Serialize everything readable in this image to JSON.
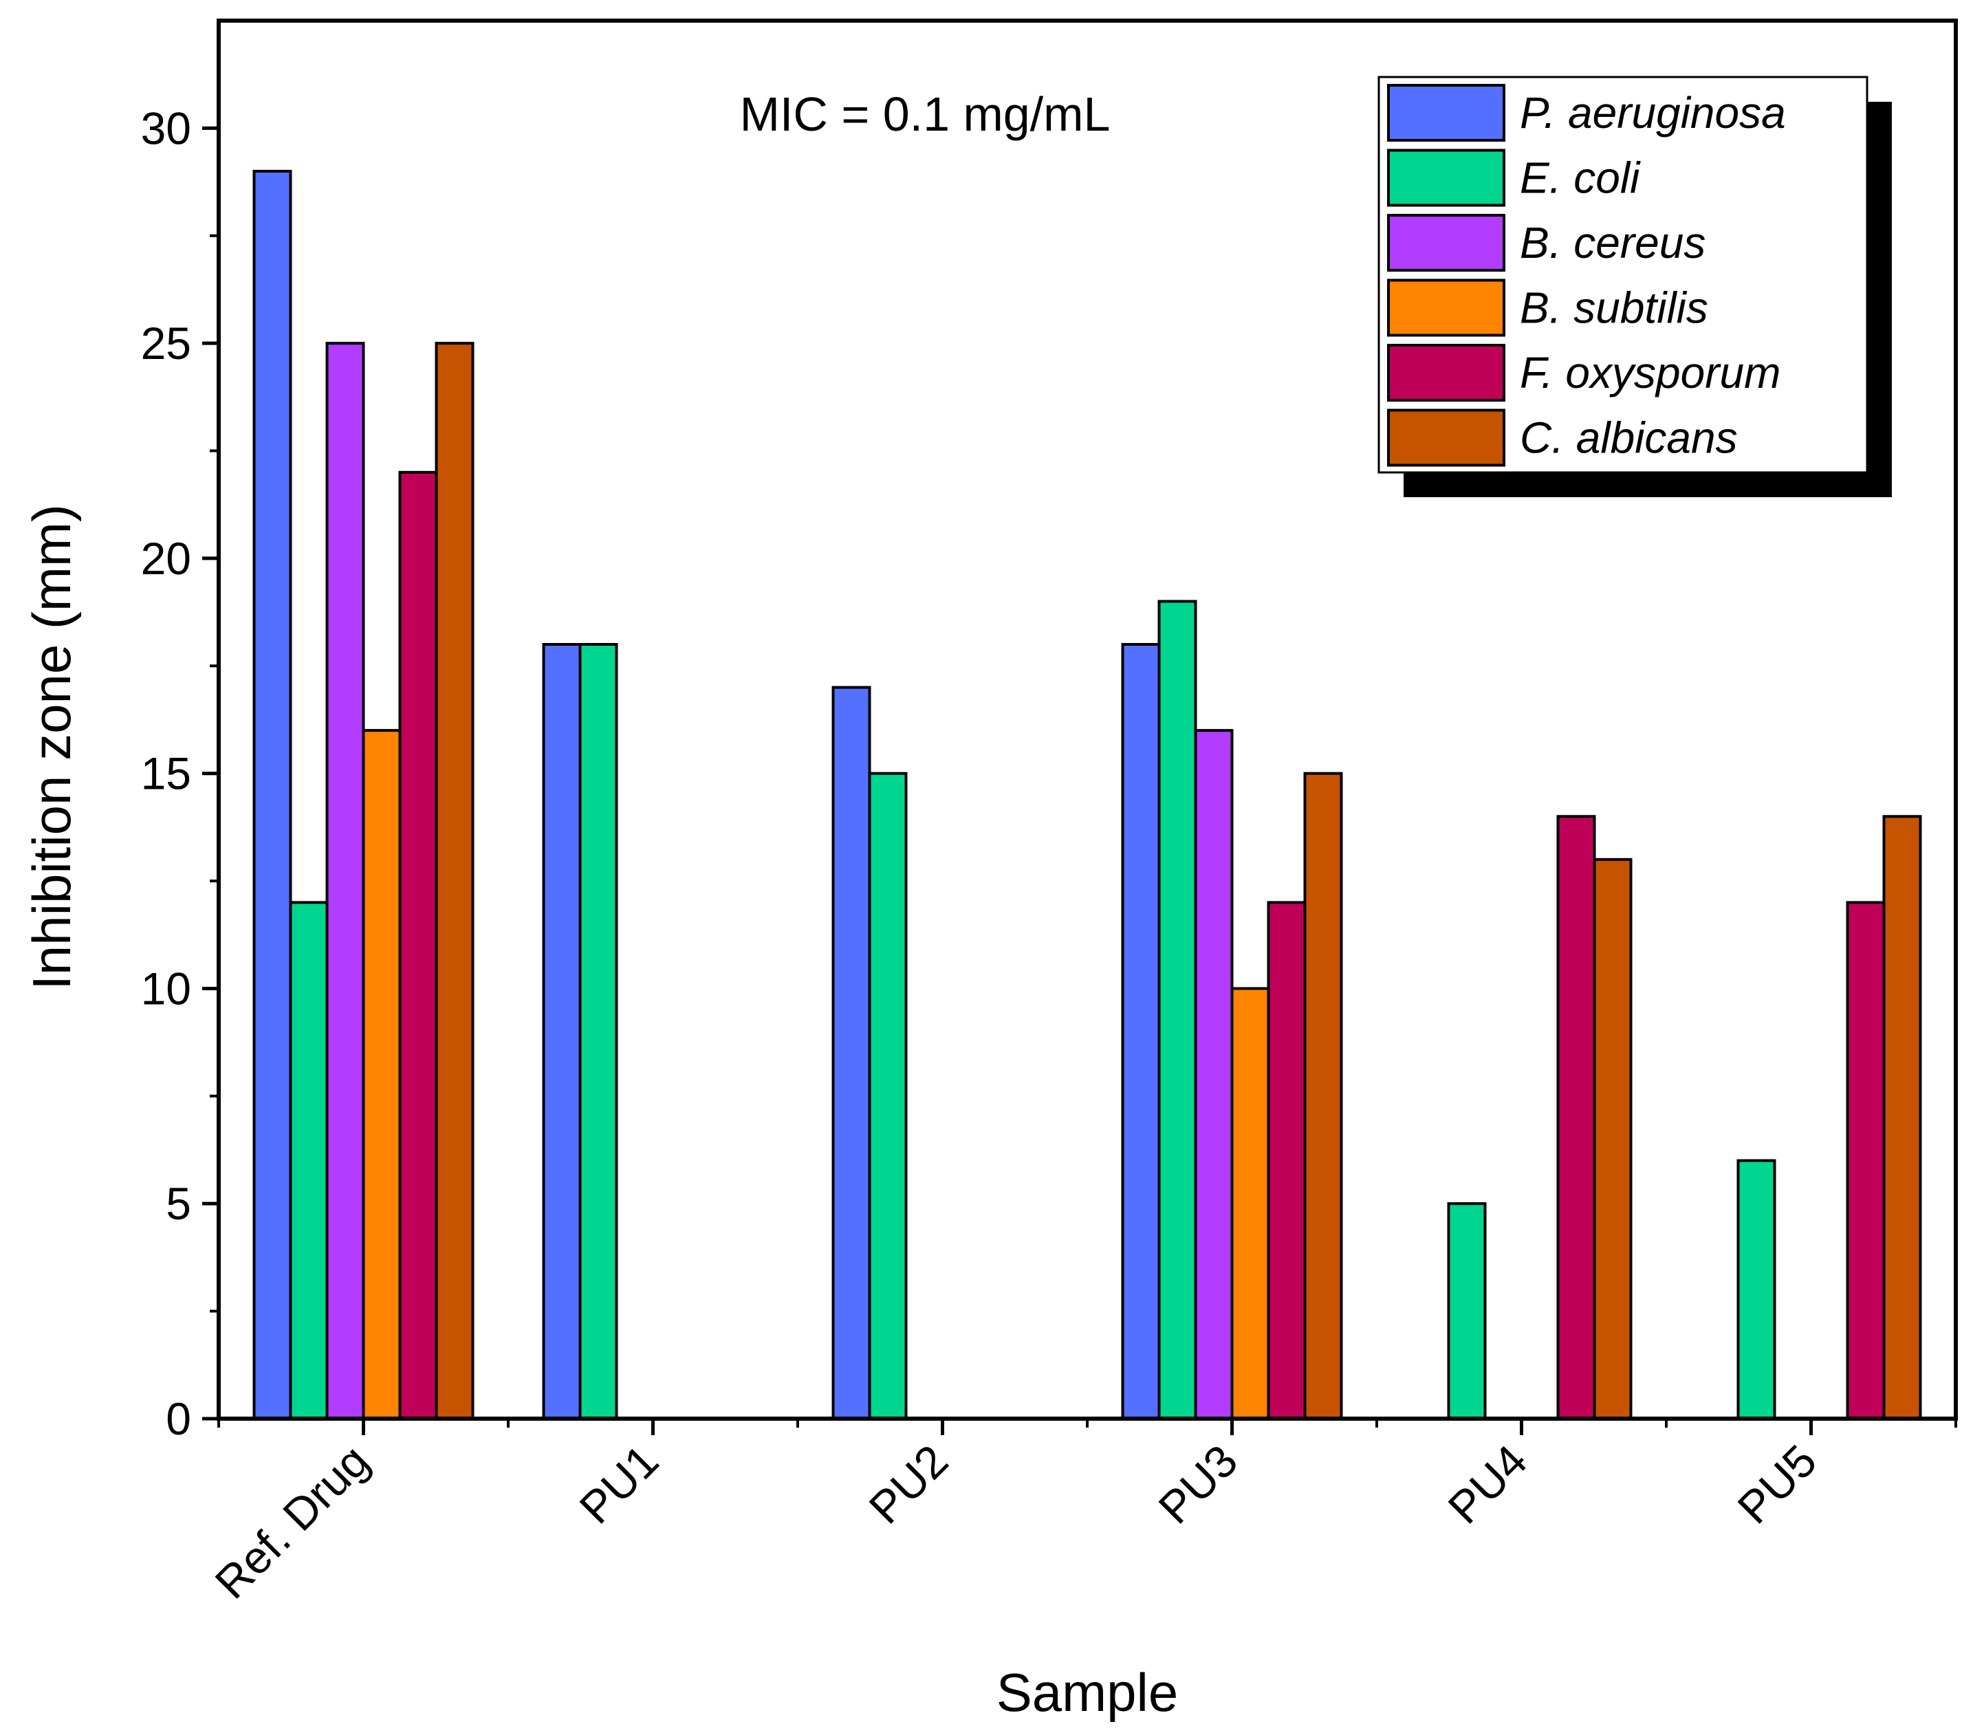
{
  "chart_data": {
    "type": "bar",
    "title": "",
    "annotation": "MIC = 0.1 mg/mL",
    "xlabel": "Sample",
    "ylabel": "Inhibition zone (mm)",
    "ylim": [
      0,
      32.5
    ],
    "yticks": [
      0,
      5,
      10,
      15,
      20,
      25,
      30
    ],
    "grid": false,
    "legend_position": "top-right",
    "categories": [
      "Ref. Drug",
      "PU1",
      "PU2",
      "PU3",
      "PU4",
      "PU5"
    ],
    "series": [
      {
        "name": "P. aeruginosa",
        "color": "#5470FF",
        "values": [
          29,
          18,
          17,
          18,
          0,
          0
        ]
      },
      {
        "name": "E. coli",
        "color": "#00D68F",
        "values": [
          12,
          18,
          15,
          19,
          5,
          6
        ]
      },
      {
        "name": "B. cereus",
        "color": "#B23CFF",
        "values": [
          25,
          0,
          0,
          16,
          0,
          0
        ]
      },
      {
        "name": "B. subtilis",
        "color": "#FF8400",
        "values": [
          16,
          0,
          0,
          10,
          0,
          0
        ]
      },
      {
        "name": "F. oxysporum",
        "color": "#C00058",
        "values": [
          22,
          0,
          0,
          12,
          14,
          12
        ]
      },
      {
        "name": "C. albicans",
        "color": "#C65300",
        "values": [
          25,
          0,
          0,
          15,
          13,
          14
        ]
      }
    ]
  }
}
